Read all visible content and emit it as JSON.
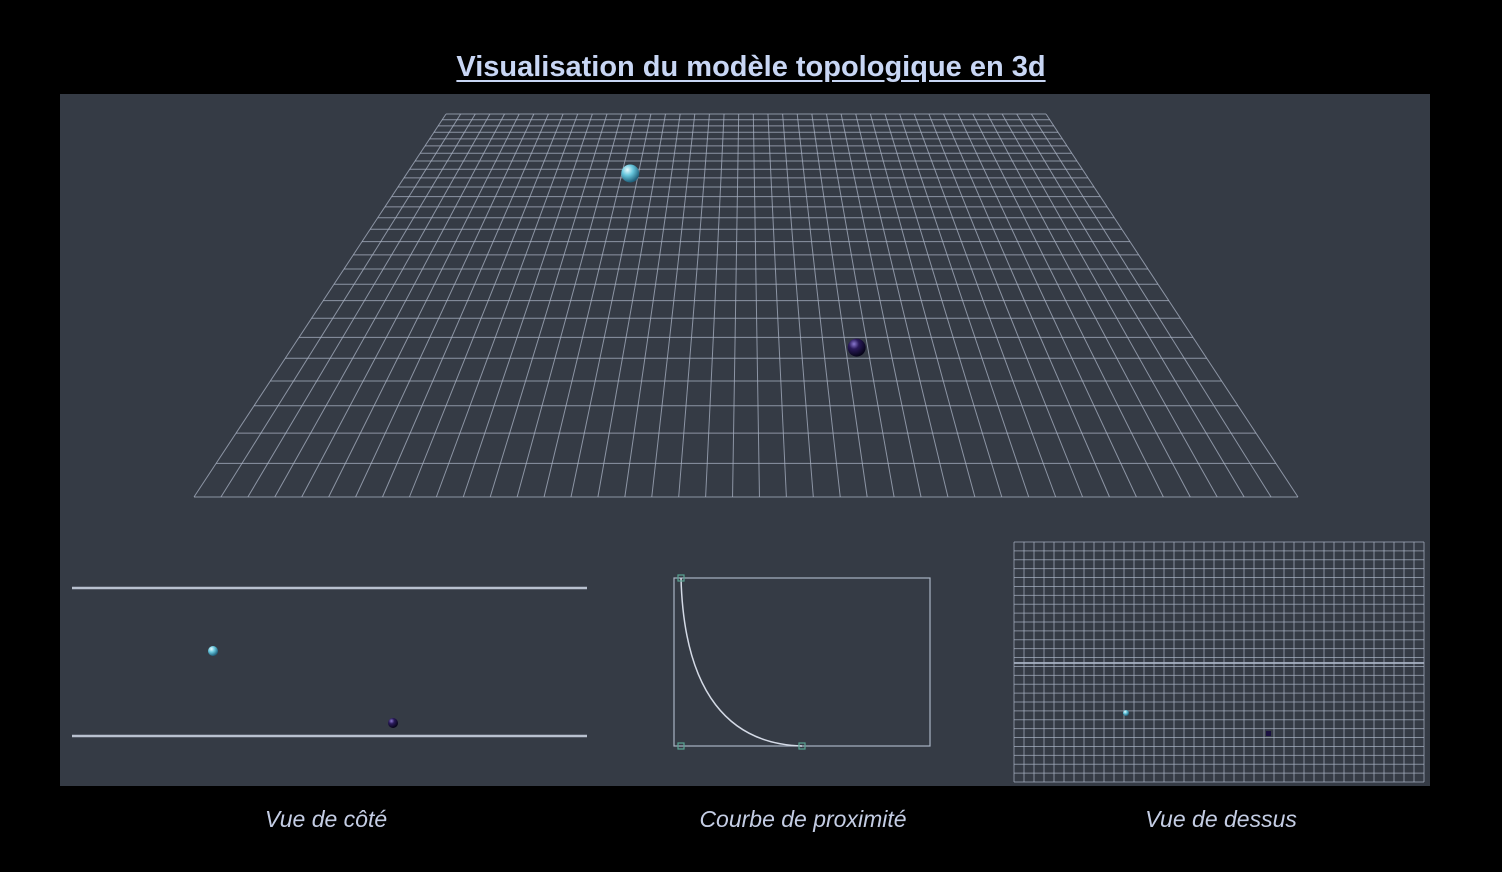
{
  "title": "Visualisation du modèle topologique en 3d",
  "captions": {
    "side_view": "Vue de côté",
    "proximity_curve": "Courbe de proximité",
    "top_view": "Vue de dessus"
  },
  "scene": {
    "perspective_grid": {
      "cells_across": 41,
      "cells_deep": 27
    },
    "top_grid": {
      "cells_across": 41,
      "cells_deep": 27
    },
    "objects": [
      {
        "name": "light-sphere",
        "color": "#67c6dc",
        "grid_col": 13.5,
        "grid_row": 8.5
      },
      {
        "name": "dark-sphere",
        "color": "#2a1a5a",
        "grid_col": 25.5,
        "grid_row": 21.5
      }
    ]
  },
  "colors": {
    "background": "#000000",
    "viewport": "#353b45",
    "grid_line": "#a9b3c4",
    "title": "#c8d6f4",
    "caption": "#c4cde4",
    "handle": "#5aa393"
  }
}
